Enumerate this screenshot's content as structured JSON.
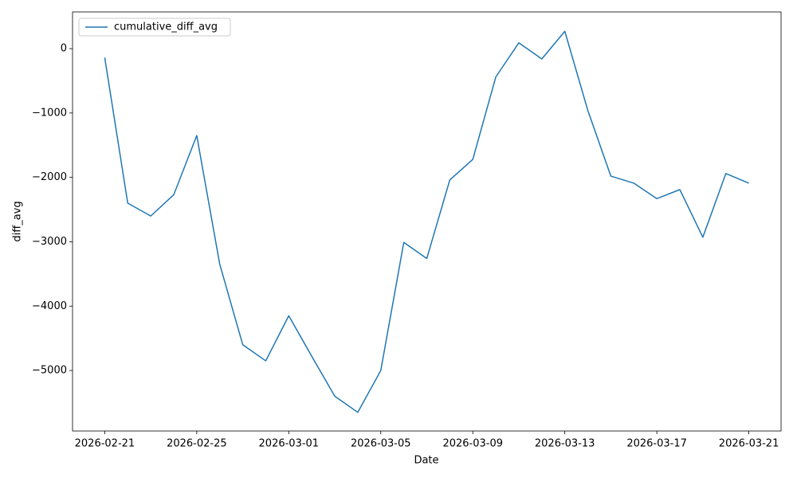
{
  "chart_data": {
    "type": "line",
    "xlabel": "Date",
    "ylabel": "diff_avg",
    "x": [
      "2026-02-21",
      "2026-02-22",
      "2026-02-23",
      "2026-02-24",
      "2026-02-25",
      "2026-02-26",
      "2026-02-27",
      "2026-02-28",
      "2026-03-01",
      "2026-03-02",
      "2026-03-03",
      "2026-03-04",
      "2026-03-05",
      "2026-03-06",
      "2026-03-07",
      "2026-03-08",
      "2026-03-09",
      "2026-03-10",
      "2026-03-11",
      "2026-03-12",
      "2026-03-13",
      "2026-03-14",
      "2026-03-15",
      "2026-03-16",
      "2026-03-17",
      "2026-03-18",
      "2026-03-19",
      "2026-03-20",
      "2026-03-21"
    ],
    "series": [
      {
        "name": "cumulative_diff_avg",
        "color": "#1f77b4",
        "values": [
          -140,
          -2400,
          -2600,
          -2270,
          -1350,
          -3350,
          -4600,
          -4850,
          -4150,
          -4780,
          -5400,
          -5650,
          -5000,
          -3010,
          -3260,
          -2040,
          -1720,
          -440,
          90,
          -160,
          270,
          -960,
          -1980,
          -2090,
          -2330,
          -2190,
          -2930,
          -1940,
          -2090
        ]
      }
    ],
    "xlim": [
      "2026-02-19T14:24",
      "2026-03-22T09:36"
    ],
    "xticks": [
      "2026-02-21",
      "2026-02-25",
      "2026-03-01",
      "2026-03-05",
      "2026-03-09",
      "2026-03-13",
      "2026-03-17",
      "2026-03-21"
    ],
    "ylim": [
      -5940,
      570
    ],
    "yticks": [
      {
        "value": -5000,
        "label": "−5000"
      },
      {
        "value": -4000,
        "label": "−4000"
      },
      {
        "value": -3000,
        "label": "−3000"
      },
      {
        "value": -2000,
        "label": "−2000"
      },
      {
        "value": -1000,
        "label": "−1000"
      },
      0
    ],
    "legend": "upper left",
    "grid": false
  }
}
